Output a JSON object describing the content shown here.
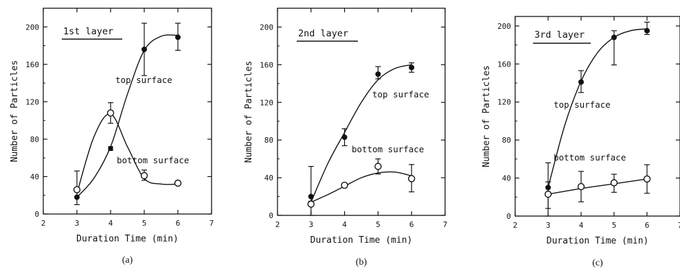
{
  "chart_data": [
    {
      "type": "scatter",
      "panel_label": "(a)",
      "title": "1st layer",
      "xlabel": "Duration Time (min)",
      "ylabel": "Number of Particles",
      "xlim": [
        2,
        7
      ],
      "ylim": [
        0,
        220
      ],
      "xticks": [
        2,
        3,
        4,
        5,
        6,
        7
      ],
      "yticks": [
        0,
        40,
        80,
        120,
        160,
        200
      ],
      "grid": false,
      "series": [
        {
          "name": "top surface",
          "marker": "filled",
          "x": [
            3,
            4,
            5,
            6
          ],
          "y": [
            18,
            70,
            176,
            189
          ],
          "err": [
            [
              18,
              18
            ],
            [
              70,
              70
            ],
            [
              148,
              204
            ],
            [
              175,
              204
            ]
          ],
          "curve": [
            [
              3,
              18
            ],
            [
              3.5,
              38
            ],
            [
              4,
              72
            ],
            [
              4.5,
              128
            ],
            [
              5,
              175
            ],
            [
              5.5,
              190
            ],
            [
              6,
              191
            ]
          ]
        },
        {
          "name": "bottom surface",
          "marker": "open",
          "x": [
            3,
            4,
            5,
            6
          ],
          "y": [
            26,
            108,
            41,
            33
          ],
          "err": [
            [
              10,
              46
            ],
            [
              97,
              119
            ],
            [
              36,
              47
            ],
            [
              31,
              35
            ]
          ],
          "curve": [
            [
              3,
              22
            ],
            [
              3.5,
              82
            ],
            [
              4,
              107
            ],
            [
              4.5,
              72
            ],
            [
              5,
              38
            ],
            [
              5.5,
              32
            ],
            [
              6,
              32
            ]
          ]
        }
      ]
    },
    {
      "type": "scatter",
      "panel_label": "(b)",
      "title": "2nd layer",
      "xlabel": "Duration Time (min)",
      "ylabel": "Number of Particles",
      "xlim": [
        2,
        7
      ],
      "ylim": [
        0,
        220
      ],
      "xticks": [
        2,
        3,
        4,
        5,
        6,
        7
      ],
      "yticks": [
        0,
        40,
        80,
        120,
        160,
        200
      ],
      "grid": false,
      "series": [
        {
          "name": "top surface",
          "marker": "filled",
          "x": [
            3,
            4,
            5,
            6
          ],
          "y": [
            20,
            83,
            150,
            157
          ],
          "err": [
            [
              0,
              52
            ],
            [
              74,
              92
            ],
            [
              145,
              158
            ],
            [
              152,
              162
            ]
          ],
          "curve": [
            [
              3,
              14
            ],
            [
              3.5,
              55
            ],
            [
              4,
              88
            ],
            [
              4.5,
              120
            ],
            [
              5,
              144
            ],
            [
              5.5,
              156
            ],
            [
              6,
              160
            ]
          ]
        },
        {
          "name": "bottom surface",
          "marker": "open",
          "x": [
            3,
            4,
            5,
            6
          ],
          "y": [
            12,
            32,
            52,
            39
          ],
          "err": [
            [
              10,
              15
            ],
            [
              30,
              33
            ],
            [
              44,
              60
            ],
            [
              25,
              54
            ]
          ],
          "curve": [
            [
              3,
              14
            ],
            [
              3.5,
              22
            ],
            [
              4,
              31
            ],
            [
              4.5,
              40
            ],
            [
              5,
              45
            ],
            [
              5.5,
              46
            ],
            [
              6,
              42
            ]
          ]
        }
      ]
    },
    {
      "type": "scatter",
      "panel_label": "(c)",
      "title": "3rd layer",
      "xlabel": "Duration Time (min)",
      "ylabel": "Number of Particles",
      "xlim": [
        2,
        7
      ],
      "ylim": [
        0,
        210
      ],
      "xticks": [
        2,
        3,
        4,
        5,
        6,
        7
      ],
      "yticks": [
        0,
        40,
        80,
        120,
        160,
        200
      ],
      "grid": false,
      "series": [
        {
          "name": "top surface",
          "marker": "filled",
          "x": [
            3,
            4,
            5,
            6
          ],
          "y": [
            30,
            141,
            188,
            195
          ],
          "err": [
            [
              0,
              56
            ],
            [
              130,
              153
            ],
            [
              159,
              195
            ],
            [
              191,
              204
            ]
          ],
          "curve": [
            [
              3,
              30
            ],
            [
              3.5,
              95
            ],
            [
              4,
              142
            ],
            [
              4.5,
              172
            ],
            [
              5,
              188
            ],
            [
              5.5,
              195
            ],
            [
              6,
              197
            ]
          ]
        },
        {
          "name": "bottom surface",
          "marker": "open",
          "x": [
            3,
            4,
            5,
            6
          ],
          "y": [
            23,
            31,
            35,
            39
          ],
          "err": [
            [
              8,
              36
            ],
            [
              15,
              47
            ],
            [
              25,
              44
            ],
            [
              24,
              54
            ]
          ],
          "curve": [
            [
              3,
              23
            ],
            [
              4,
              29
            ],
            [
              5,
              34
            ],
            [
              6,
              39
            ]
          ]
        }
      ]
    }
  ]
}
